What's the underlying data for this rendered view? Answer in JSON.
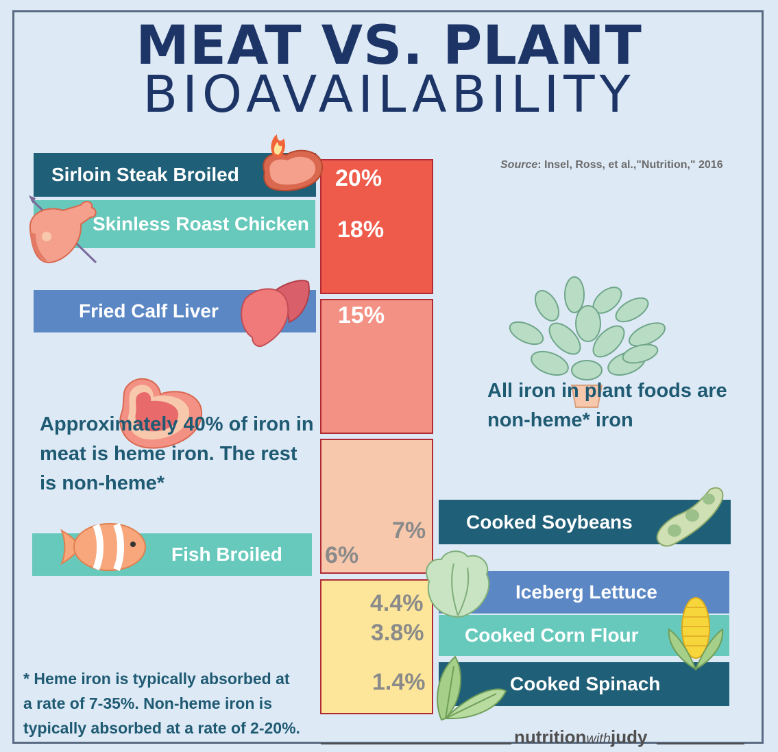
{
  "title": "MEAT VS. PLANT",
  "subtitle": "BIOAVAILABILITY",
  "source": {
    "label": "Source",
    "text": ": Insel, Ross, et al.,\"Nutrition,\" 2016"
  },
  "meat_items": [
    {
      "label": "Sirloin Steak Broiled",
      "value": "20%"
    },
    {
      "label": "Skinless Roast Chicken",
      "value": "18%"
    },
    {
      "label": "Fried Calf Liver",
      "value": "15%"
    },
    {
      "label": "Fish Broiled",
      "value": "6%"
    }
  ],
  "plant_items": [
    {
      "label": "Cooked Soybeans",
      "value": "7%"
    },
    {
      "label": "Iceberg Lettuce",
      "value": "4.4%"
    },
    {
      "label": "Cooked Corn Flour",
      "value": "3.8%"
    },
    {
      "label": "Cooked Spinach",
      "value": "1.4%"
    }
  ],
  "notes": {
    "meat_line1": "Approximately 40% of iron in",
    "meat_line2": "meat is heme iron. The rest",
    "meat_line3": "is non-heme*",
    "plant_line1": "All iron in plant foods are",
    "plant_line2": "non-heme* iron",
    "foot_line1": "* Heme iron is typically absorbed at",
    "foot_line2": "a rate of 7-35%. Non-heme iron is",
    "foot_line3": "typically absorbed at a rate of 2-20%."
  },
  "brand": {
    "part1": "nutrition",
    "part2": "with",
    "part3": "judy"
  },
  "colors": {
    "background": "#dde9f5",
    "title": "#1d3566",
    "dark_teal": "#1f5f78",
    "teal": "#66c9bb",
    "blue": "#5b87c5",
    "red": "#ef5b4a",
    "salmon": "#f29184",
    "peach": "#f7c8ac",
    "yellow": "#fde69a"
  },
  "icons": [
    "steak-icon",
    "chicken-leg-icon",
    "liver-icon",
    "steak-icon",
    "fish-icon",
    "soybean-icon",
    "lettuce-icon",
    "corn-icon",
    "spinach-leaf-icon",
    "potted-plant-icon"
  ]
}
